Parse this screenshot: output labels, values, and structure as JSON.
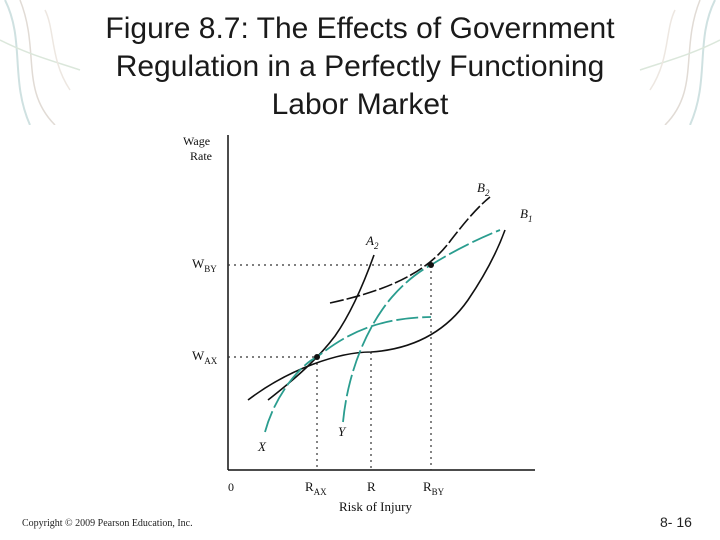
{
  "slide": {
    "title_lines": [
      "Figure 8.7: The Effects of Government",
      "Regulation in a Perfectly Functioning",
      "Labor Market"
    ],
    "copyright": "Copyright © 2009 Pearson Education, Inc.",
    "slide_number": "8- 16"
  },
  "diagram": {
    "y_axis_label_line1": "Wage",
    "y_axis_label_line2": "Rate",
    "x_axis_label": "Risk of Injury",
    "origin_label": "0",
    "wage_labels": {
      "w_by": {
        "base": "W",
        "sub": "BY"
      },
      "w_ax": {
        "base": "W",
        "sub": "AX"
      }
    },
    "risk_labels": {
      "r_ax": {
        "base": "R",
        "sub": "AX"
      },
      "r": {
        "base": "R",
        "sub": ""
      },
      "r_by": {
        "base": "R",
        "sub": "BY"
      }
    },
    "curve_labels": {
      "b2": {
        "base": "B",
        "sub": "2"
      },
      "b1": {
        "base": "B",
        "sub": "1"
      },
      "a2": {
        "base": "A",
        "sub": "2"
      },
      "x": {
        "base": "X",
        "sub": ""
      },
      "y": {
        "base": "Y",
        "sub": ""
      }
    },
    "colors": {
      "black_curve": "#111111",
      "teal_curve": "#2a9d8f",
      "guide": "#333333"
    }
  }
}
